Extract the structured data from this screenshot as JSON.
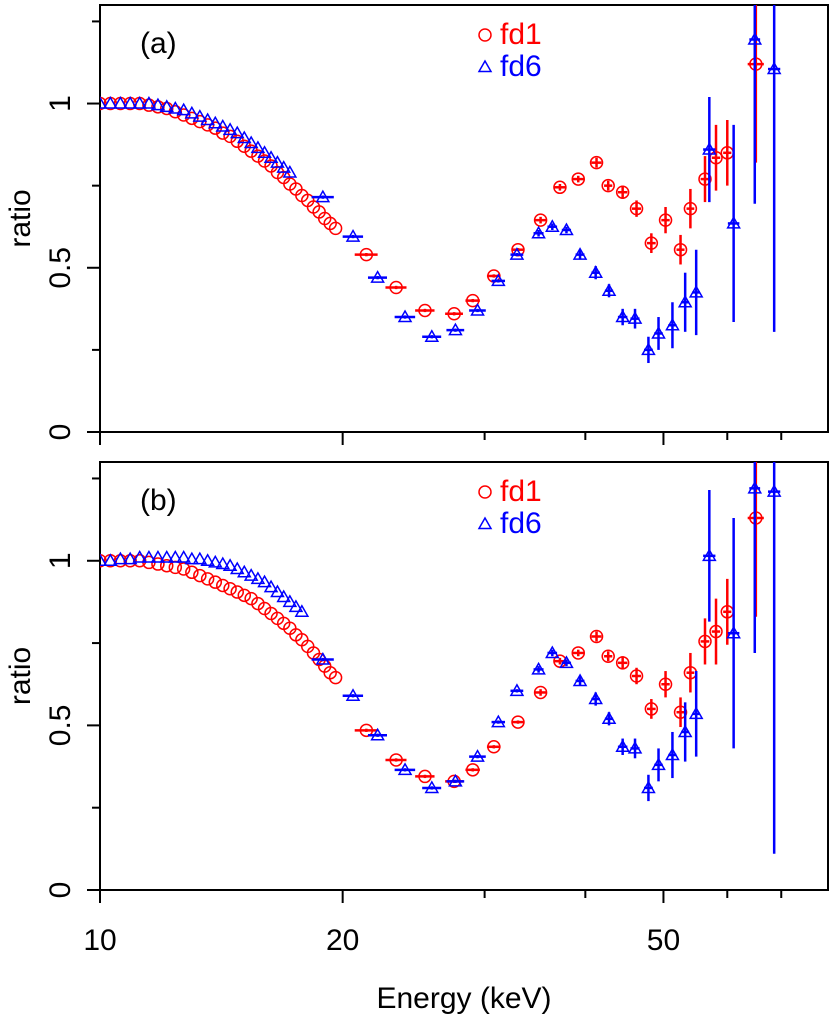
{
  "chart_data": [
    {
      "type": "scatter",
      "panel_label": "(a)",
      "ylabel": "ratio",
      "xlim": [
        10,
        80
      ],
      "log_x": true,
      "xticks": [
        10,
        20,
        50
      ],
      "x_minor_ticks": [
        30,
        40,
        60,
        70
      ],
      "ylim": [
        0,
        1.3
      ],
      "yticks": [
        0,
        0.5,
        1
      ],
      "y_minor_ticks": [
        0.25,
        0.75,
        1.25
      ],
      "legend": "top-center",
      "series": [
        {
          "name": "fd1",
          "color": "#ff0000",
          "marker": "circle",
          "x": [
            10.0,
            10.3,
            10.6,
            10.9,
            11.2,
            11.5,
            11.8,
            12.1,
            12.4,
            12.7,
            13.0,
            13.3,
            13.6,
            13.9,
            14.2,
            14.5,
            14.8,
            15.1,
            15.4,
            15.7,
            16.0,
            16.3,
            16.6,
            16.9,
            17.2,
            17.5,
            17.8,
            18.1,
            18.4,
            18.7,
            19.0,
            19.3,
            19.6,
            21.4,
            23.3,
            25.3,
            27.5,
            29.0,
            30.8,
            33.0,
            35.2,
            37.2,
            39.2,
            41.3,
            42.7,
            44.5,
            46.3,
            48.3,
            50.3,
            52.5,
            54.0,
            56.3,
            58.1,
            60.0,
            65.1
          ],
          "values": [
            1.0,
            1.0,
            1.0,
            1.0,
            1.0,
            0.995,
            0.99,
            0.985,
            0.975,
            0.965,
            0.955,
            0.945,
            0.935,
            0.925,
            0.91,
            0.9,
            0.885,
            0.87,
            0.855,
            0.84,
            0.825,
            0.81,
            0.79,
            0.775,
            0.755,
            0.74,
            0.72,
            0.705,
            0.685,
            0.67,
            0.65,
            0.635,
            0.62,
            0.54,
            0.44,
            0.37,
            0.36,
            0.4,
            0.475,
            0.555,
            0.645,
            0.745,
            0.77,
            0.82,
            0.75,
            0.73,
            0.68,
            0.575,
            0.645,
            0.555,
            0.68,
            0.77,
            0.835,
            0.85,
            1.12
          ],
          "xerr": [
            null,
            null,
            null,
            null,
            null,
            null,
            null,
            null,
            null,
            null,
            null,
            null,
            null,
            null,
            null,
            null,
            null,
            null,
            null,
            null,
            null,
            null,
            null,
            null,
            null,
            null,
            null,
            null,
            null,
            null,
            null,
            null,
            null,
            0.7,
            0.7,
            0.7,
            0.7,
            0.6,
            0.6,
            0.6,
            0.6,
            0.6,
            0.6,
            0.6,
            0.5,
            0.6,
            0.6,
            0.6,
            0.6,
            0.6,
            0.6,
            0.7,
            0.7,
            0.7,
            1.5
          ],
          "yerr": [
            null,
            null,
            null,
            null,
            null,
            null,
            null,
            null,
            null,
            null,
            null,
            null,
            null,
            null,
            null,
            null,
            null,
            null,
            null,
            null,
            null,
            null,
            null,
            null,
            null,
            null,
            null,
            null,
            null,
            null,
            null,
            null,
            null,
            0.005,
            0.005,
            0.005,
            0.005,
            0.005,
            0.005,
            0.005,
            0.01,
            0.01,
            0.01,
            0.015,
            0.015,
            0.02,
            0.025,
            0.03,
            0.04,
            0.045,
            0.06,
            0.07,
            0.1,
            0.1,
            0.3
          ]
        },
        {
          "name": "fd6",
          "color": "#0000ff",
          "marker": "triangle",
          "x": [
            10.0,
            10.3,
            10.6,
            10.9,
            11.2,
            11.5,
            11.8,
            12.1,
            12.4,
            12.7,
            13.0,
            13.3,
            13.6,
            13.9,
            14.2,
            14.5,
            14.8,
            15.1,
            15.4,
            15.7,
            16.0,
            16.3,
            16.6,
            16.9,
            17.2,
            18.9,
            20.6,
            22.1,
            23.9,
            25.8,
            27.6,
            29.4,
            31.2,
            32.9,
            35.0,
            36.4,
            37.9,
            39.4,
            41.2,
            42.8,
            44.5,
            46.1,
            47.9,
            49.3,
            51.3,
            53.2,
            54.9,
            57.0,
            61.1,
            64.9,
            68.6
          ],
          "values": [
            1.0,
            1.0,
            1.0,
            1.0,
            1.0,
            1.0,
            0.995,
            0.99,
            0.985,
            0.98,
            0.97,
            0.96,
            0.95,
            0.94,
            0.93,
            0.92,
            0.91,
            0.895,
            0.88,
            0.865,
            0.85,
            0.835,
            0.82,
            0.805,
            0.79,
            0.715,
            0.595,
            0.47,
            0.35,
            0.29,
            0.31,
            0.37,
            0.46,
            0.54,
            0.605,
            0.625,
            0.615,
            0.54,
            0.485,
            0.43,
            0.35,
            0.345,
            0.25,
            0.3,
            0.325,
            0.395,
            0.425,
            0.86,
            0.635,
            1.195,
            1.105
          ],
          "xerr": [
            null,
            null,
            null,
            null,
            null,
            null,
            null,
            null,
            null,
            null,
            null,
            null,
            null,
            null,
            null,
            null,
            null,
            null,
            null,
            null,
            null,
            null,
            null,
            null,
            null,
            0.6,
            0.6,
            0.6,
            0.7,
            0.7,
            0.7,
            0.7,
            0.6,
            0.6,
            0.5,
            0.5,
            0.5,
            0.5,
            0.5,
            0.5,
            0.6,
            0.6,
            0.6,
            0.6,
            0.6,
            0.6,
            0.6,
            1.0,
            1.0,
            1.0,
            1.2
          ],
          "yerr": [
            null,
            null,
            null,
            null,
            null,
            null,
            null,
            null,
            null,
            null,
            null,
            null,
            null,
            null,
            null,
            null,
            null,
            null,
            null,
            null,
            null,
            null,
            null,
            null,
            null,
            0.005,
            0.005,
            0.005,
            0.005,
            0.005,
            0.005,
            0.005,
            0.005,
            0.005,
            0.01,
            0.01,
            0.01,
            0.015,
            0.02,
            0.02,
            0.025,
            0.03,
            0.04,
            0.05,
            0.07,
            0.09,
            0.13,
            0.16,
            0.3,
            0.5,
            0.8
          ]
        }
      ]
    },
    {
      "type": "scatter",
      "panel_label": "(b)",
      "ylabel": "ratio",
      "xlabel": "Energy (keV)",
      "xlim": [
        10,
        80
      ],
      "log_x": true,
      "xticks": [
        10,
        20,
        50
      ],
      "x_minor_ticks": [
        30,
        40,
        60,
        70
      ],
      "ylim": [
        0,
        1.3
      ],
      "yticks": [
        0,
        0.5,
        1
      ],
      "y_minor_ticks": [
        0.25,
        0.75,
        1.25
      ],
      "legend": "top-center",
      "series": [
        {
          "name": "fd1",
          "color": "#ff0000",
          "marker": "circle",
          "x": [
            10.0,
            10.3,
            10.6,
            10.9,
            11.2,
            11.5,
            11.8,
            12.1,
            12.4,
            12.7,
            13.0,
            13.3,
            13.6,
            13.9,
            14.2,
            14.5,
            14.8,
            15.1,
            15.4,
            15.7,
            16.0,
            16.3,
            16.6,
            16.9,
            17.2,
            17.5,
            17.8,
            18.1,
            18.4,
            18.7,
            19.0,
            19.3,
            19.6,
            21.4,
            23.3,
            25.3,
            27.5,
            29.0,
            30.8,
            33.0,
            35.2,
            37.2,
            39.2,
            41.3,
            42.7,
            44.5,
            46.3,
            48.3,
            50.3,
            52.5,
            54.0,
            56.3,
            58.1,
            60.0,
            65.1
          ],
          "values": [
            1.0,
            1.0,
            1.0,
            1.0,
            1.0,
            0.995,
            0.99,
            0.985,
            0.98,
            0.975,
            0.965,
            0.955,
            0.945,
            0.935,
            0.925,
            0.915,
            0.905,
            0.895,
            0.885,
            0.87,
            0.855,
            0.84,
            0.825,
            0.81,
            0.795,
            0.775,
            0.76,
            0.74,
            0.72,
            0.7,
            0.68,
            0.66,
            0.645,
            0.485,
            0.395,
            0.345,
            0.33,
            0.365,
            0.435,
            0.51,
            0.6,
            0.695,
            0.72,
            0.77,
            0.71,
            0.69,
            0.65,
            0.55,
            0.625,
            0.54,
            0.66,
            0.755,
            0.785,
            0.845,
            1.13
          ],
          "xerr": [
            null,
            null,
            null,
            null,
            null,
            null,
            null,
            null,
            null,
            null,
            null,
            null,
            null,
            null,
            null,
            null,
            null,
            null,
            null,
            null,
            null,
            null,
            null,
            null,
            null,
            null,
            null,
            null,
            null,
            null,
            null,
            null,
            null,
            0.7,
            0.7,
            0.7,
            0.7,
            0.6,
            0.6,
            0.6,
            0.6,
            0.6,
            0.6,
            0.6,
            0.5,
            0.6,
            0.6,
            0.6,
            0.6,
            0.6,
            0.6,
            0.7,
            0.7,
            0.7,
            1.5
          ],
          "yerr": [
            null,
            null,
            null,
            null,
            null,
            null,
            null,
            null,
            null,
            null,
            null,
            null,
            null,
            null,
            null,
            null,
            null,
            null,
            null,
            null,
            null,
            null,
            null,
            null,
            null,
            null,
            null,
            null,
            null,
            null,
            null,
            null,
            null,
            0.005,
            0.005,
            0.005,
            0.005,
            0.005,
            0.005,
            0.005,
            0.01,
            0.01,
            0.01,
            0.015,
            0.015,
            0.02,
            0.025,
            0.03,
            0.04,
            0.045,
            0.06,
            0.07,
            0.1,
            0.1,
            0.3
          ]
        },
        {
          "name": "fd6",
          "color": "#0000ff",
          "marker": "triangle",
          "x": [
            10.0,
            10.3,
            10.6,
            10.9,
            11.2,
            11.5,
            11.8,
            12.1,
            12.4,
            12.7,
            13.0,
            13.3,
            13.6,
            13.9,
            14.2,
            14.5,
            14.8,
            15.1,
            15.4,
            15.7,
            16.0,
            16.3,
            16.6,
            16.9,
            17.2,
            17.5,
            17.8,
            18.9,
            20.6,
            22.1,
            23.9,
            25.8,
            27.6,
            29.4,
            31.2,
            32.9,
            35.0,
            36.4,
            37.9,
            39.4,
            41.2,
            42.8,
            44.5,
            46.1,
            47.9,
            49.3,
            51.3,
            53.2,
            54.9,
            57.0,
            61.1,
            64.9,
            68.6
          ],
          "values": [
            1.0,
            1.0,
            1.005,
            1.005,
            1.01,
            1.01,
            1.01,
            1.01,
            1.01,
            1.01,
            1.005,
            1.005,
            1.0,
            0.995,
            0.99,
            0.985,
            0.975,
            0.965,
            0.955,
            0.945,
            0.935,
            0.92,
            0.905,
            0.89,
            0.875,
            0.86,
            0.845,
            0.7,
            0.59,
            0.47,
            0.365,
            0.31,
            0.33,
            0.405,
            0.51,
            0.605,
            0.67,
            0.72,
            0.69,
            0.635,
            0.58,
            0.52,
            0.435,
            0.43,
            0.31,
            0.38,
            0.41,
            0.48,
            0.535,
            1.015,
            0.78,
            1.22,
            1.21
          ],
          "xerr": [
            null,
            null,
            null,
            null,
            null,
            null,
            null,
            null,
            null,
            null,
            null,
            null,
            null,
            null,
            null,
            null,
            null,
            null,
            null,
            null,
            null,
            null,
            null,
            null,
            null,
            null,
            null,
            0.6,
            0.6,
            0.6,
            0.7,
            0.7,
            0.7,
            0.7,
            0.6,
            0.6,
            0.5,
            0.5,
            0.5,
            0.5,
            0.5,
            0.5,
            0.6,
            0.6,
            0.6,
            0.6,
            0.6,
            0.6,
            0.6,
            1.0,
            1.0,
            1.0,
            1.2
          ],
          "yerr": [
            null,
            null,
            null,
            null,
            null,
            null,
            null,
            null,
            null,
            null,
            null,
            null,
            null,
            null,
            null,
            null,
            null,
            null,
            null,
            null,
            null,
            null,
            null,
            null,
            null,
            null,
            null,
            0.005,
            0.005,
            0.005,
            0.005,
            0.005,
            0.005,
            0.005,
            0.005,
            0.005,
            0.01,
            0.01,
            0.01,
            0.015,
            0.02,
            0.02,
            0.025,
            0.03,
            0.04,
            0.05,
            0.07,
            0.09,
            0.13,
            0.2,
            0.35,
            0.5,
            1.1
          ]
        }
      ]
    }
  ]
}
